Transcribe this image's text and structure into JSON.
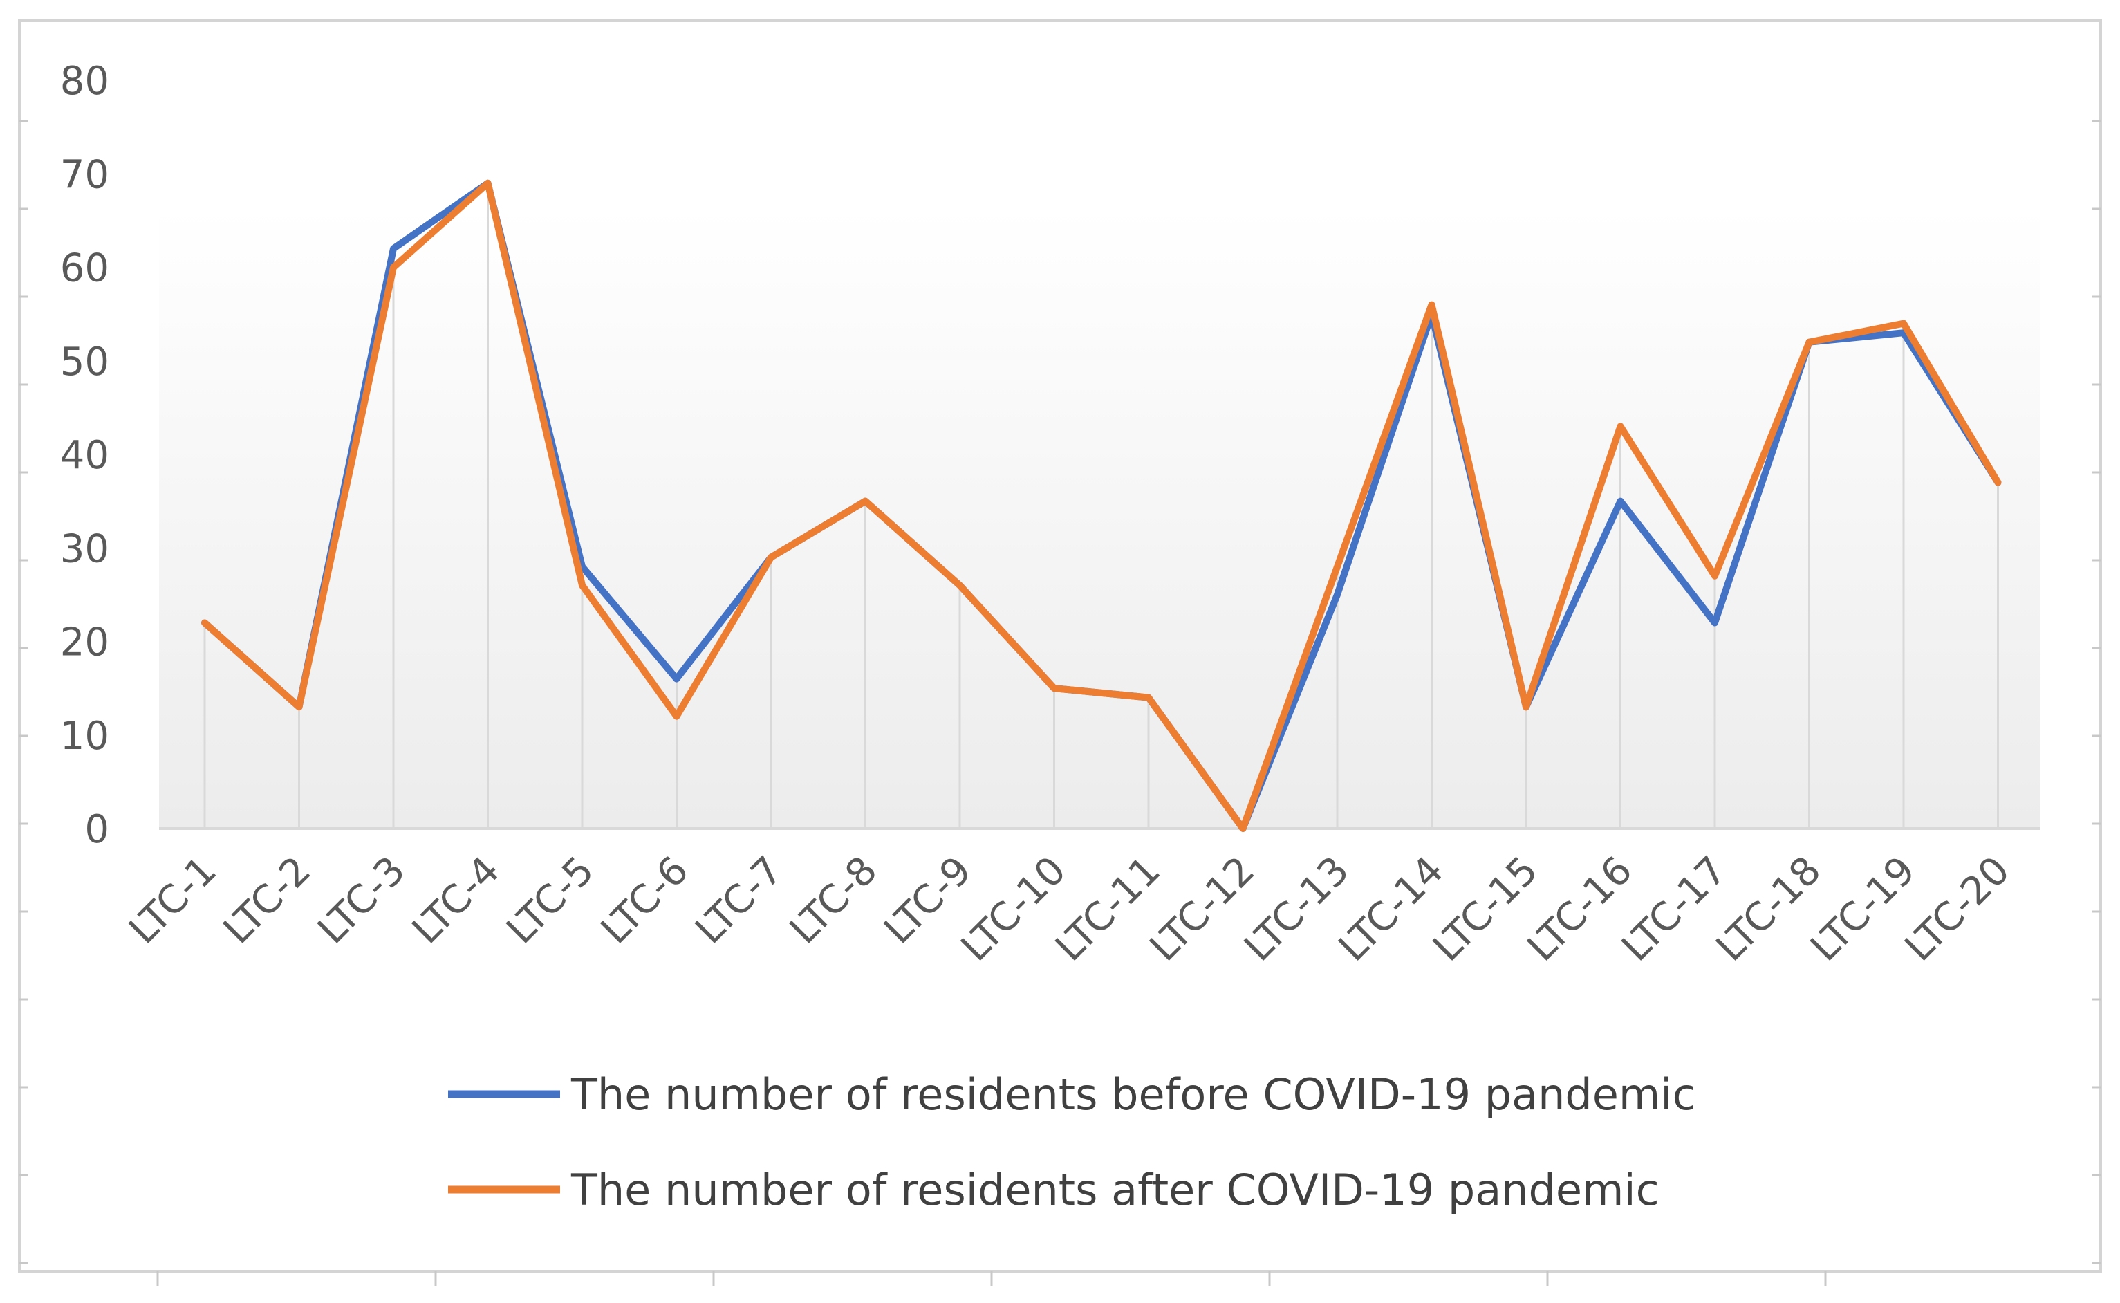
{
  "chart_data": {
    "type": "line",
    "title": "",
    "xlabel": "",
    "ylabel": "",
    "ylim": [
      0,
      80
    ],
    "yticks": [
      0,
      10,
      20,
      30,
      40,
      50,
      60,
      70,
      80
    ],
    "categories": [
      "LTC-1",
      "LTC-2",
      "LTC-3",
      "LTC-4",
      "LTC-5",
      "LTC-6",
      "LTC-7",
      "LTC-8",
      "LTC-9",
      "LTC-10",
      "LTC-11",
      "LTC-12",
      "LTC-13",
      "LTC-14",
      "LTC-15",
      "LTC-16",
      "LTC-17",
      "LTC-18",
      "LTC-19",
      "LTC-20"
    ],
    "series": [
      {
        "name": "The number of residents before COVID-19 pandemic",
        "color": "#4472C4",
        "values": [
          22,
          13,
          62,
          69,
          28,
          16,
          29,
          35,
          26,
          15,
          14,
          0,
          25,
          55,
          13,
          35,
          22,
          52,
          53,
          37
        ]
      },
      {
        "name": "The number of residents after COVID-19 pandemic",
        "color": "#ED7D31",
        "values": [
          22,
          13,
          60,
          69,
          26,
          12,
          29,
          35,
          26,
          15,
          14,
          0,
          28,
          56,
          13,
          43,
          27,
          52,
          54,
          37
        ]
      }
    ],
    "legend_position": "bottom",
    "grid": "vertical drop lines"
  }
}
